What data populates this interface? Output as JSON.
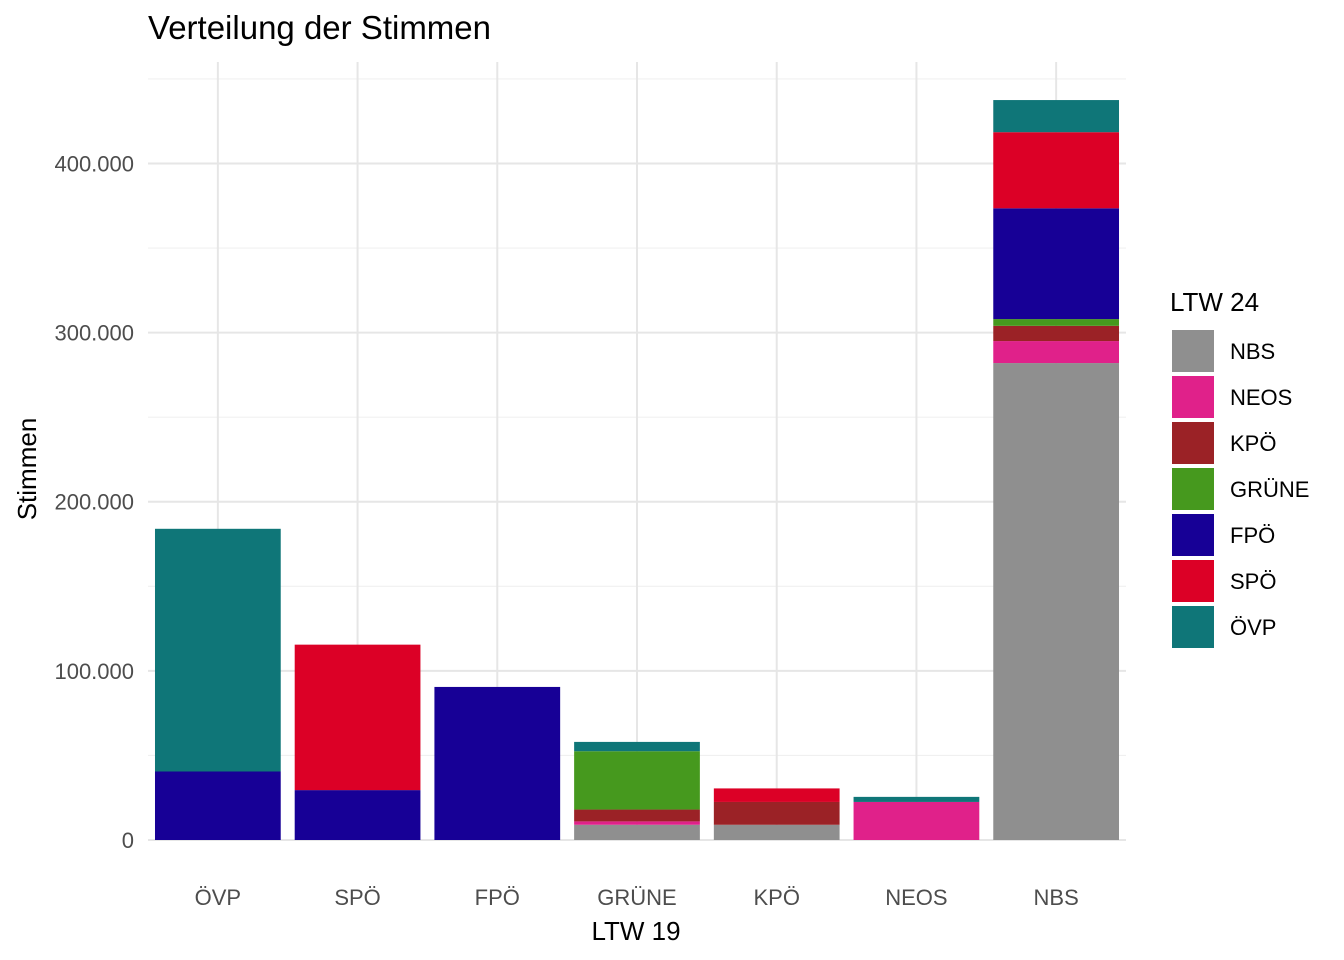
{
  "chart_data": {
    "type": "bar",
    "stacked": true,
    "title": "Verteilung der Stimmen",
    "xlabel": "LTW 19",
    "ylabel": "Stimmen",
    "ylim": [
      0,
      450000
    ],
    "y_ticks": [
      0,
      100000,
      200000,
      300000,
      400000
    ],
    "y_tick_labels": [
      "0",
      "100.000",
      "200.000",
      "300.000",
      "400.000"
    ],
    "grid": true,
    "legend_title": "LTW 24",
    "legend_position": "right",
    "categories": [
      "ÖVP",
      "SPÖ",
      "FPÖ",
      "GRÜNE",
      "KPÖ",
      "NEOS",
      "NBS"
    ],
    "series": [
      {
        "name": "NBS",
        "color": "#8f8f8f",
        "values": [
          0,
          0,
          0,
          9000,
          9000,
          0,
          282000
        ]
      },
      {
        "name": "NEOS",
        "color": "#e0218a",
        "values": [
          0,
          0,
          0,
          2000,
          0,
          22500,
          13000
        ]
      },
      {
        "name": "KPÖ",
        "color": "#9b2226",
        "values": [
          0,
          0,
          0,
          7000,
          13500,
          0,
          9000
        ]
      },
      {
        "name": "GRÜNE",
        "color": "#46991e",
        "values": [
          0,
          0,
          0,
          34500,
          0,
          0,
          4000
        ]
      },
      {
        "name": "FPÖ",
        "color": "#170096",
        "values": [
          40500,
          29500,
          90500,
          0,
          0,
          0,
          65500
        ]
      },
      {
        "name": "SPÖ",
        "color": "#dc0026",
        "values": [
          0,
          86000,
          0,
          0,
          8000,
          0,
          45000
        ]
      },
      {
        "name": "ÖVP",
        "color": "#0f7678",
        "values": [
          143500,
          0,
          0,
          5500,
          0,
          3000,
          19000
        ]
      }
    ]
  }
}
